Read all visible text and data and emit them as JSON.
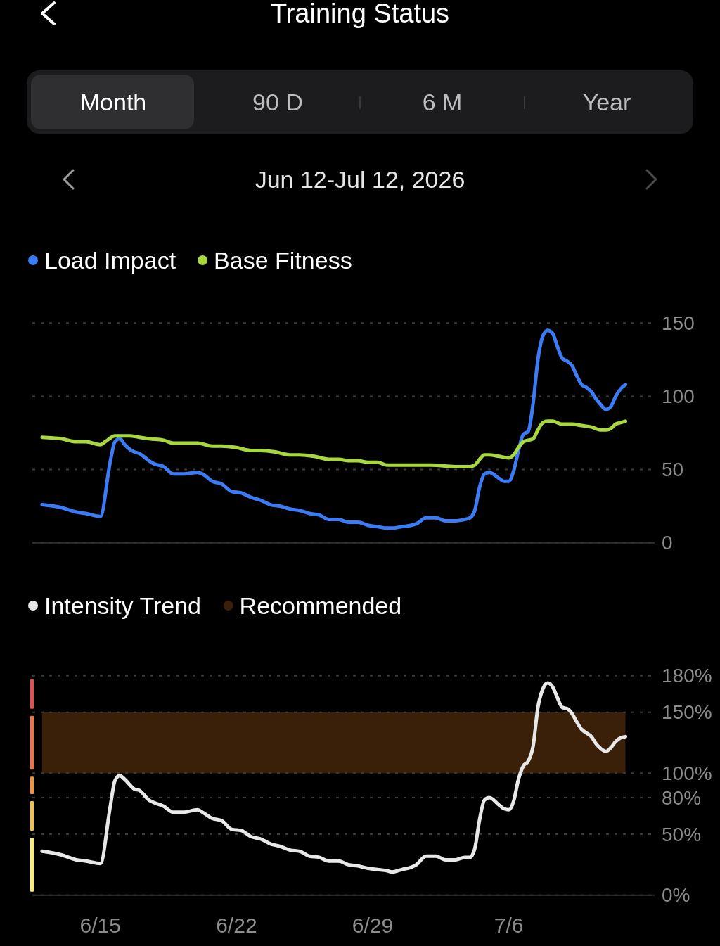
{
  "chart_data": [
    {
      "type": "other",
      "title": "Training Status",
      "subtitle": "Jun 12-Jul 12, 2026",
      "annotations": [
        "Month",
        "90 D",
        "6 M",
        "Year"
      ]
    },
    {
      "type": "line",
      "series": [
        {
          "name": "Load Impact",
          "color": "#3b7cf6",
          "x": [
            "2026-06-12T00:00",
            "2026-06-13T00:00",
            "2026-06-13T18:00",
            "2026-06-14T06:00",
            "2026-06-15T00:00",
            "2026-06-15T12:00",
            "2026-06-15T18:00",
            "2026-06-16T00:00",
            "2026-06-16T06:00",
            "2026-06-16T18:00",
            "2026-06-17T00:00",
            "2026-06-17T12:00",
            "2026-06-17T18:00",
            "2026-06-18T06:00",
            "2026-06-18T18:00",
            "2026-06-19T06:00",
            "2026-06-20T00:00",
            "2026-06-20T06:00",
            "2026-06-20T18:00",
            "2026-06-21T06:00",
            "2026-06-21T18:00",
            "2026-06-22T06:00",
            "2026-06-22T18:00",
            "2026-06-23T06:00",
            "2026-06-23T18:00",
            "2026-06-24T06:00",
            "2026-06-24T18:00",
            "2026-06-25T06:00",
            "2026-06-25T18:00",
            "2026-06-26T06:00",
            "2026-06-26T18:00",
            "2026-06-27T06:00",
            "2026-06-27T18:00",
            "2026-06-28T06:00",
            "2026-06-28T18:00",
            "2026-06-29T06:00",
            "2026-06-29T18:00",
            "2026-06-30T00:00",
            "2026-06-30T12:00",
            "2026-07-01T00:00",
            "2026-07-01T06:00",
            "2026-07-01T18:00",
            "2026-07-02T06:00",
            "2026-07-02T18:00",
            "2026-07-03T06:00",
            "2026-07-03T18:00",
            "2026-07-04T00:00",
            "2026-07-04T06:00",
            "2026-07-04T12:00",
            "2026-07-04T18:00",
            "2026-07-05T00:00",
            "2026-07-05T12:00",
            "2026-07-05T18:00",
            "2026-07-06T00:00",
            "2026-07-06T06:00",
            "2026-07-06T12:00",
            "2026-07-06T18:00",
            "2026-07-07T00:00",
            "2026-07-07T06:00",
            "2026-07-07T12:00",
            "2026-07-07T18:00",
            "2026-07-08T00:00",
            "2026-07-08T06:00",
            "2026-07-08T12:00",
            "2026-07-08T18:00",
            "2026-07-09T00:00",
            "2026-07-09T06:00",
            "2026-07-09T12:00",
            "2026-07-09T18:00",
            "2026-07-10T00:00",
            "2026-07-10T06:00",
            "2026-07-10T12:00",
            "2026-07-10T18:00",
            "2026-07-11T00:00",
            "2026-07-11T06:00",
            "2026-07-11T12:00",
            "2026-07-11T18:00",
            "2026-07-12T00:00"
          ],
          "values": [
            26,
            24,
            21,
            20,
            18,
            55,
            69,
            71,
            67,
            62,
            61,
            56,
            54,
            52,
            47,
            47,
            48,
            47,
            42,
            40,
            35,
            34,
            31,
            29,
            26,
            25,
            23,
            22,
            20,
            19,
            16,
            16,
            14,
            14,
            12,
            11,
            10,
            10,
            11,
            12,
            13,
            17,
            17,
            15,
            15,
            16,
            17,
            22,
            38,
            47,
            48,
            44,
            42,
            42,
            49,
            63,
            74,
            76,
            95,
            125,
            141,
            145,
            143,
            134,
            126,
            124,
            121,
            114,
            108,
            106,
            103,
            98,
            94,
            91,
            93,
            100,
            105,
            108
          ]
        },
        {
          "name": "Base Fitness",
          "color": "#a8d83e",
          "x": [
            "2026-06-12T00:00",
            "2026-06-13T00:00",
            "2026-06-13T18:00",
            "2026-06-14T06:00",
            "2026-06-15T00:00",
            "2026-06-15T06:00",
            "2026-06-15T18:00",
            "2026-06-16T00:00",
            "2026-06-16T12:00",
            "2026-06-17T00:00",
            "2026-06-17T12:00",
            "2026-06-18T06:00",
            "2026-06-18T18:00",
            "2026-06-19T06:00",
            "2026-06-20T00:00",
            "2026-06-20T18:00",
            "2026-06-21T06:00",
            "2026-06-22T00:00",
            "2026-06-22T18:00",
            "2026-06-23T06:00",
            "2026-06-24T00:00",
            "2026-06-24T18:00",
            "2026-06-25T06:00",
            "2026-06-26T00:00",
            "2026-06-26T18:00",
            "2026-06-27T06:00",
            "2026-06-27T18:00",
            "2026-06-28T06:00",
            "2026-06-28T18:00",
            "2026-06-29T06:00",
            "2026-06-29T18:00",
            "2026-06-30T00:00",
            "2026-07-01T00:00",
            "2026-07-02T00:00",
            "2026-07-03T06:00",
            "2026-07-04T00:00",
            "2026-07-04T06:00",
            "2026-07-04T12:00",
            "2026-07-04T18:00",
            "2026-07-05T00:00",
            "2026-07-05T12:00",
            "2026-07-06T00:00",
            "2026-07-06T06:00",
            "2026-07-06T12:00",
            "2026-07-06T18:00",
            "2026-07-07T00:00",
            "2026-07-07T06:00",
            "2026-07-07T12:00",
            "2026-07-07T18:00",
            "2026-07-08T00:00",
            "2026-07-08T06:00",
            "2026-07-08T18:00",
            "2026-07-09T06:00",
            "2026-07-09T18:00",
            "2026-07-10T06:00",
            "2026-07-10T18:00",
            "2026-07-11T00:00",
            "2026-07-11T06:00",
            "2026-07-11T12:00",
            "2026-07-11T18:00",
            "2026-07-12T00:00"
          ],
          "values": [
            72,
            71,
            69,
            69,
            67,
            69,
            73,
            73,
            73,
            72,
            71,
            70,
            68,
            68,
            68,
            66,
            66,
            65,
            63,
            63,
            62,
            60,
            60,
            59,
            57,
            57,
            56,
            56,
            55,
            55,
            53,
            53,
            53,
            53,
            52,
            52,
            53,
            57,
            60,
            60,
            59,
            58,
            60,
            65,
            69,
            70,
            71,
            77,
            82,
            83,
            83,
            81,
            81,
            80,
            79,
            77,
            77,
            78,
            81,
            82,
            83
          ]
        }
      ],
      "xlim": [
        "2026-06-11T12:00",
        "2026-07-13T12:00"
      ],
      "ylim": [
        0,
        150
      ],
      "yticks": [
        0,
        50,
        100,
        150
      ],
      "grid": "y",
      "legend": "top left",
      "tick_labels": "y"
    },
    {
      "type": "line",
      "series": [
        {
          "name": "Intensity Trend",
          "color": "#e8e8e8",
          "x": [
            "2026-06-12T00:00",
            "2026-06-13T00:00",
            "2026-06-13T18:00",
            "2026-06-14T06:00",
            "2026-06-15T00:00",
            "2026-06-15T12:00",
            "2026-06-15T18:00",
            "2026-06-16T00:00",
            "2026-06-16T06:00",
            "2026-06-16T18:00",
            "2026-06-17T00:00",
            "2026-06-17T12:00",
            "2026-06-17T18:00",
            "2026-06-18T06:00",
            "2026-06-18T18:00",
            "2026-06-19T06:00",
            "2026-06-20T00:00",
            "2026-06-20T06:00",
            "2026-06-20T18:00",
            "2026-06-21T06:00",
            "2026-06-21T18:00",
            "2026-06-22T06:00",
            "2026-06-22T18:00",
            "2026-06-23T06:00",
            "2026-06-23T18:00",
            "2026-06-24T06:00",
            "2026-06-24T18:00",
            "2026-06-25T06:00",
            "2026-06-25T18:00",
            "2026-06-26T06:00",
            "2026-06-26T18:00",
            "2026-06-27T06:00",
            "2026-06-27T18:00",
            "2026-06-28T06:00",
            "2026-06-28T18:00",
            "2026-06-29T06:00",
            "2026-06-29T18:00",
            "2026-06-30T00:00",
            "2026-06-30T12:00",
            "2026-07-01T00:00",
            "2026-07-01T06:00",
            "2026-07-01T18:00",
            "2026-07-02T06:00",
            "2026-07-02T18:00",
            "2026-07-03T06:00",
            "2026-07-03T18:00",
            "2026-07-04T00:00",
            "2026-07-04T06:00",
            "2026-07-04T12:00",
            "2026-07-04T18:00",
            "2026-07-05T00:00",
            "2026-07-05T12:00",
            "2026-07-05T18:00",
            "2026-07-06T00:00",
            "2026-07-06T06:00",
            "2026-07-06T12:00",
            "2026-07-06T18:00",
            "2026-07-07T00:00",
            "2026-07-07T06:00",
            "2026-07-07T12:00",
            "2026-07-07T18:00",
            "2026-07-08T00:00",
            "2026-07-08T06:00",
            "2026-07-08T12:00",
            "2026-07-08T18:00",
            "2026-07-09T00:00",
            "2026-07-09T06:00",
            "2026-07-09T12:00",
            "2026-07-09T18:00",
            "2026-07-10T00:00",
            "2026-07-10T06:00",
            "2026-07-10T12:00",
            "2026-07-10T18:00",
            "2026-07-11T00:00",
            "2026-07-11T06:00",
            "2026-07-11T12:00",
            "2026-07-11T18:00",
            "2026-07-12T00:00"
          ],
          "values": [
            36,
            33,
            29,
            28,
            26,
            72,
            94,
            98,
            95,
            87,
            86,
            78,
            76,
            73,
            68,
            68,
            70,
            68,
            63,
            61,
            54,
            53,
            48,
            46,
            42,
            40,
            37,
            36,
            32,
            31,
            28,
            28,
            25,
            24,
            22,
            21,
            20,
            19,
            21,
            23,
            25,
            32,
            32,
            29,
            29,
            31,
            31,
            38,
            62,
            78,
            80,
            74,
            71,
            70,
            77,
            95,
            106,
            110,
            122,
            154,
            169,
            174,
            171,
            162,
            154,
            153,
            149,
            142,
            136,
            133,
            130,
            124,
            120,
            118,
            121,
            126,
            129,
            130
          ]
        }
      ],
      "bands": [
        {
          "axis": "y",
          "from": 100,
          "to": 150,
          "label": "Recommended",
          "color": "#3a2008"
        }
      ],
      "xlim": [
        "2026-06-11T12:00",
        "2026-07-13T12:00"
      ],
      "xticks": [
        {
          "value": "2026-06-15",
          "label": "6/15"
        },
        {
          "value": "2026-06-22",
          "label": "6/22"
        },
        {
          "value": "2026-06-29",
          "label": "6/29"
        },
        {
          "value": "2026-07-06",
          "label": "7/6"
        }
      ],
      "ylim": [
        0,
        180
      ],
      "yticks": [
        {
          "value": 0,
          "label": "0%"
        },
        {
          "value": 50,
          "label": "50%"
        },
        {
          "value": 80,
          "label": "80%"
        },
        {
          "value": 100,
          "label": "100%"
        },
        {
          "value": 150,
          "label": "150%"
        },
        {
          "value": 180,
          "label": "180%"
        }
      ],
      "grid": "y",
      "legend": "top left"
    }
  ]
}
